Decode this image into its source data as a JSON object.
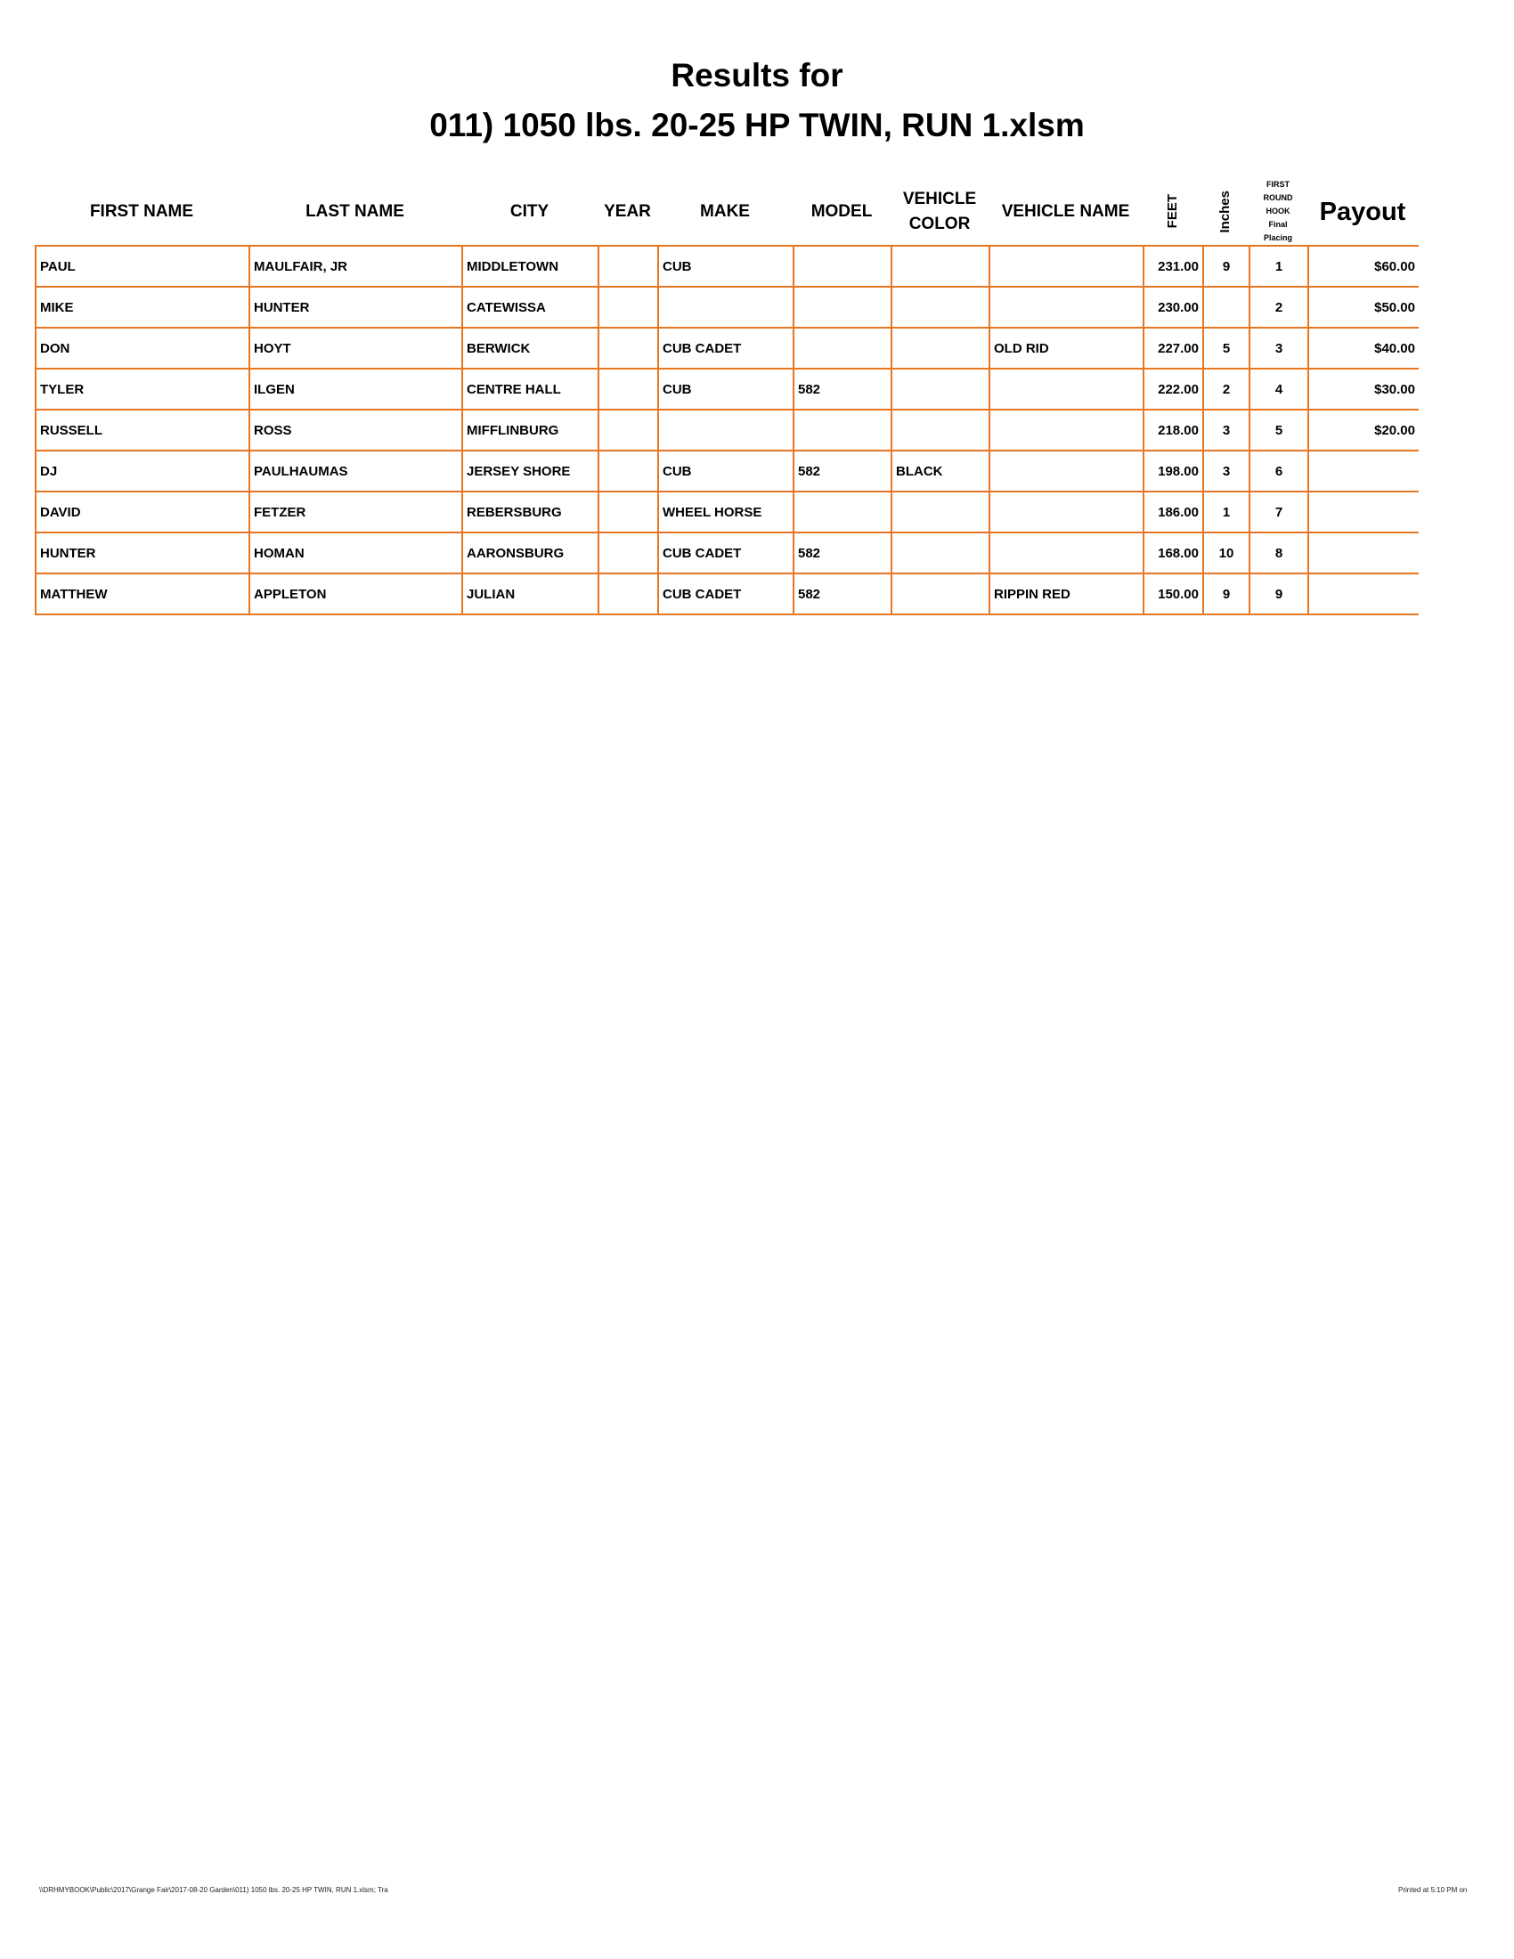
{
  "title_line1": "Results for",
  "title_line2": "011) 1050 lbs. 20-25 HP TWIN, RUN 1.xlsm",
  "border_color": "#E87722",
  "headers": {
    "first_name": "FIRST NAME",
    "last_name": "LAST NAME",
    "city": "CITY",
    "year": "YEAR",
    "make": "MAKE",
    "model": "MODEL",
    "vehicle_color": "VEHICLE COLOR",
    "vehicle_name": "VEHICLE NAME",
    "feet": "FEET",
    "inches": "Inches",
    "placing": [
      "FIRST",
      "ROUND",
      "HOOK",
      "Final",
      "Placing"
    ],
    "payout": "Payout"
  },
  "rows": [
    {
      "first": "PAUL",
      "last": "MAULFAIR, JR",
      "city": "MIDDLETOWN",
      "year": "",
      "make": "CUB",
      "model": "",
      "color": "",
      "vname": "",
      "feet": "231.00",
      "inches": "9",
      "place": "1",
      "payout": "$60.00"
    },
    {
      "first": "MIKE",
      "last": "HUNTER",
      "city": "CATEWISSA",
      "year": "",
      "make": "",
      "model": "",
      "color": "",
      "vname": "",
      "feet": "230.00",
      "inches": "",
      "place": "2",
      "payout": "$50.00"
    },
    {
      "first": "DON",
      "last": "HOYT",
      "city": "BERWICK",
      "year": "",
      "make": "CUB CADET",
      "model": "",
      "color": "",
      "vname": "OLD RID",
      "feet": "227.00",
      "inches": "5",
      "place": "3",
      "payout": "$40.00"
    },
    {
      "first": "TYLER",
      "last": "ILGEN",
      "city": "CENTRE HALL",
      "year": "",
      "make": "CUB",
      "model": "582",
      "color": "",
      "vname": "",
      "feet": "222.00",
      "inches": "2",
      "place": "4",
      "payout": "$30.00"
    },
    {
      "first": "RUSSELL",
      "last": "ROSS",
      "city": "MIFFLINBURG",
      "year": "",
      "make": "",
      "model": "",
      "color": "",
      "vname": "",
      "feet": "218.00",
      "inches": "3",
      "place": "5",
      "payout": "$20.00"
    },
    {
      "first": "DJ",
      "last": "PAULHAUMAS",
      "city": "JERSEY SHORE",
      "year": "",
      "make": "CUB",
      "model": "582",
      "color": "BLACK",
      "vname": "",
      "feet": "198.00",
      "inches": "3",
      "place": "6",
      "payout": ""
    },
    {
      "first": "DAVID",
      "last": "FETZER",
      "city": "REBERSBURG",
      "year": "",
      "make": "WHEEL HORSE",
      "model": "",
      "color": "",
      "vname": "",
      "feet": "186.00",
      "inches": "1",
      "place": "7",
      "payout": ""
    },
    {
      "first": "HUNTER",
      "last": "HOMAN",
      "city": "AARONSBURG",
      "year": "",
      "make": "CUB CADET",
      "model": "582",
      "color": "",
      "vname": "",
      "feet": "168.00",
      "inches": "10",
      "place": "8",
      "payout": ""
    },
    {
      "first": "MATTHEW",
      "last": "APPLETON",
      "city": "JULIAN",
      "year": "",
      "make": "CUB CADET",
      "model": "582",
      "color": "",
      "vname": "RIPPIN RED",
      "feet": "150.00",
      "inches": "9",
      "place": "9",
      "payout": ""
    }
  ],
  "footer_left": "\\\\DRHMYBOOK\\Public\\2017\\Grange Fair\\2017-08-20 Garden\\011) 1050 lbs. 20-25 HP TWIN, RUN 1.xlsm; Tra",
  "footer_right": "Printed at 5:10 PM on"
}
